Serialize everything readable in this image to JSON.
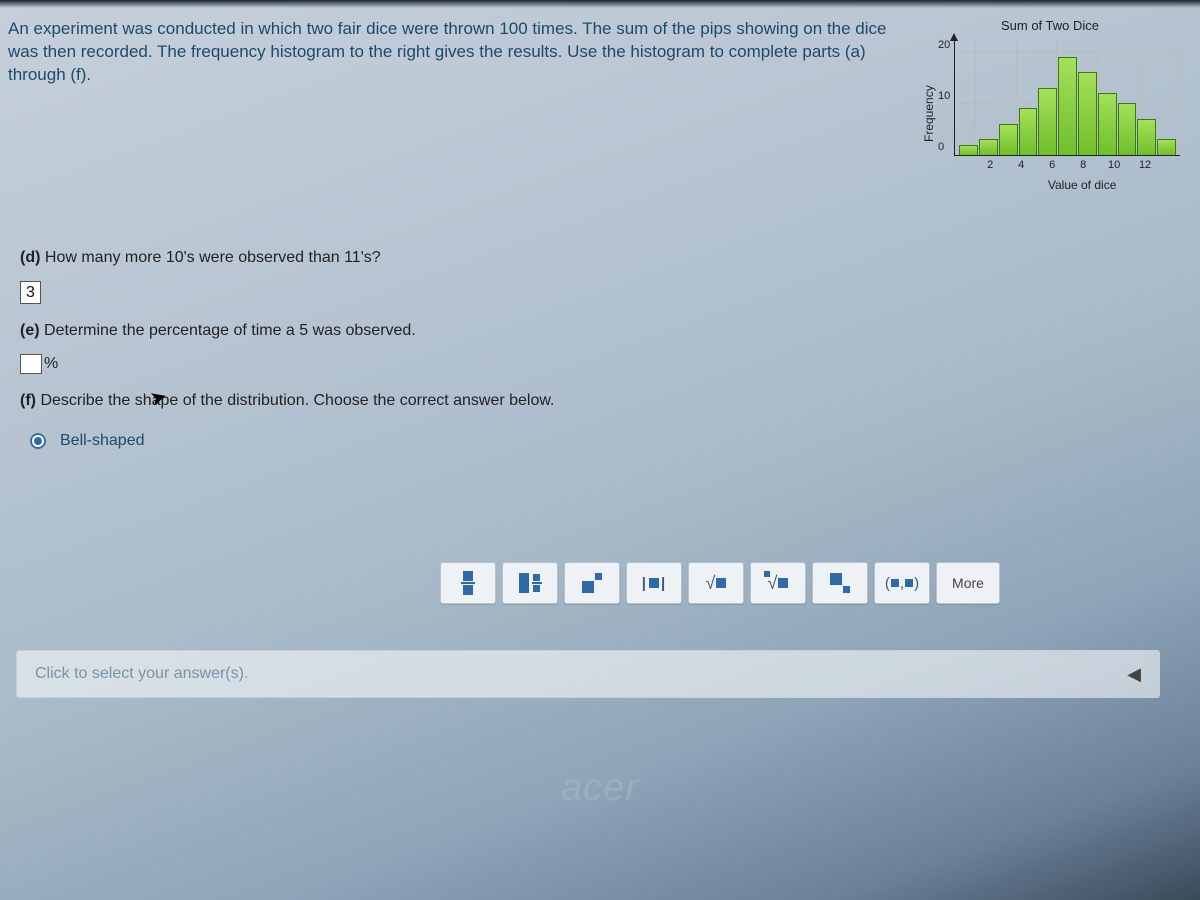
{
  "prompt": "An experiment was conducted in which two fair dice were thrown 100 times. The sum of the pips showing on the dice was then recorded. The frequency histogram to the right gives the results. Use the histogram to complete parts (a) through (f).",
  "chart": {
    "type": "bar",
    "title": "Sum of Two Dice",
    "ylabel": "Frequency",
    "xlabel": "Value of dice",
    "ylim": [
      0,
      22
    ],
    "yticks": [
      20,
      10,
      0
    ],
    "xticks": [
      2,
      4,
      6,
      8,
      10,
      12
    ],
    "categories": [
      2,
      3,
      4,
      5,
      6,
      7,
      8,
      9,
      10,
      11,
      12
    ],
    "values": [
      2,
      3,
      6,
      9,
      13,
      19,
      16,
      12,
      10,
      7,
      3
    ],
    "bar_fill_top": "#a4e05a",
    "bar_fill_bottom": "#6fbf2a",
    "bar_border": "#3d7a12",
    "axis_color": "#222222",
    "grid_color": "#bbbbbb",
    "background": "transparent"
  },
  "questions": {
    "d": {
      "label": "(d)",
      "text": "How many more 10's were observed than 11's?",
      "answer": "3"
    },
    "e": {
      "label": "(e)",
      "text": "Determine the percentage of time a 5 was observed.",
      "answer": "",
      "unit": "%"
    },
    "f": {
      "label": "(f)",
      "text": "Describe the shape of the distribution. Choose the correct answer below.",
      "selected_option": "Bell-shaped"
    }
  },
  "toolbar": {
    "items": [
      "fraction",
      "mixed-fraction",
      "exponent",
      "absolute-value",
      "square-root",
      "nth-root",
      "subscript",
      "ordered-pair"
    ],
    "more_label": "More"
  },
  "footer": {
    "hint": "Click to select your answer(s)."
  },
  "brand": "acer",
  "colors": {
    "link_text": "#1d4a6b",
    "body_text": "#222222",
    "button_bg": "#eef2f5",
    "button_border": "#b8c2cc",
    "radio_accent": "#2f6aa8"
  }
}
